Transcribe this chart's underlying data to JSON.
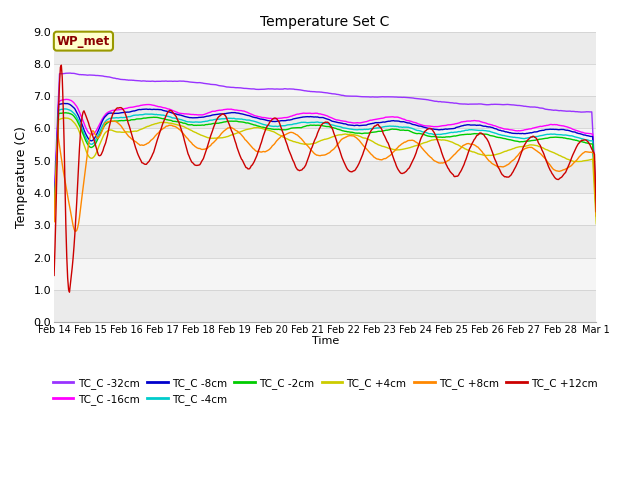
{
  "title": "Temperature Set C",
  "xlabel": "Time",
  "ylabel": "Temperature (C)",
  "ylim": [
    0.0,
    9.0
  ],
  "yticks": [
    0.0,
    1.0,
    2.0,
    3.0,
    4.0,
    5.0,
    6.0,
    7.0,
    8.0,
    9.0
  ],
  "xtick_labels": [
    "Feb 14",
    "Feb 15",
    "Feb 16",
    "Feb 17",
    "Feb 18",
    "Feb 19",
    "Feb 20",
    "Feb 21",
    "Feb 22",
    "Feb 23",
    "Feb 24",
    "Feb 25",
    "Feb 26",
    "Feb 27",
    "Feb 28",
    "Mar 1"
  ],
  "wp_met_label": "WP_met",
  "background_color": "#ffffff",
  "plot_bg_color": "#ebebeb",
  "series": [
    {
      "label": "TC_C -32cm",
      "color": "#9933ff"
    },
    {
      "label": "TC_C -16cm",
      "color": "#ff00ff"
    },
    {
      "label": "TC_C -8cm",
      "color": "#0000cc"
    },
    {
      "label": "TC_C -4cm",
      "color": "#00cccc"
    },
    {
      "label": "TC_C -2cm",
      "color": "#00cc00"
    },
    {
      "label": "TC_C +4cm",
      "color": "#cccc00"
    },
    {
      "label": "TC_C +8cm",
      "color": "#ff8800"
    },
    {
      "label": "TC_C +12cm",
      "color": "#cc0000"
    }
  ]
}
